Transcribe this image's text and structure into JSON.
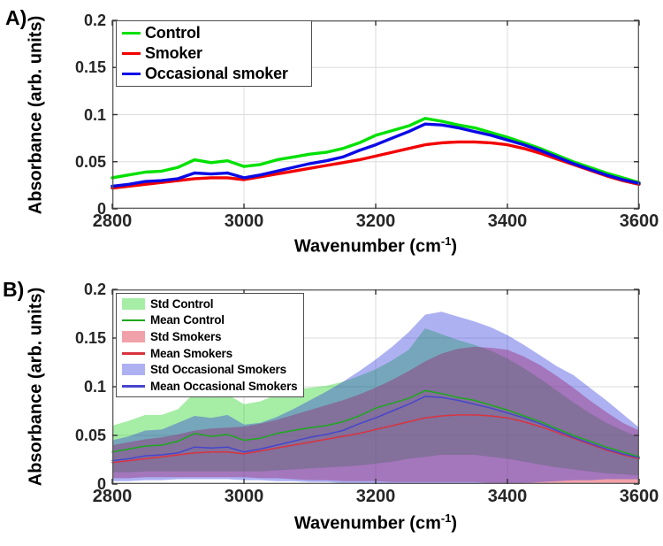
{
  "figure": {
    "panel_a_letter": "A)",
    "panel_b_letter": "B)",
    "ylabel": "Absorbance (arb. units)",
    "xlabel_prefix": "Wavenumber (cm",
    "xlabel_sup": "-1",
    "xlabel_suffix": ")"
  },
  "chart_data": [
    {
      "type": "line",
      "panel": "A",
      "xlabel": "Wavenumber (cm⁻¹)",
      "ylabel": "Absorbance (arb. units)",
      "xlim": [
        2800,
        3600
      ],
      "ylim": [
        0,
        0.2
      ],
      "xticks": [
        2800,
        3000,
        3200,
        3400,
        3600
      ],
      "xtick_labels": [
        "2800",
        "3000",
        "3200",
        "3400",
        "3600"
      ],
      "yticks": [
        0,
        0.05,
        0.1,
        0.15,
        0.2
      ],
      "ytick_labels": [
        "0",
        "0.05",
        "0.1",
        "0.15",
        "0.2"
      ],
      "grid": true,
      "grid_color": "#dcdcdc",
      "legend_position": "top-left",
      "x": [
        2800,
        2825,
        2850,
        2875,
        2900,
        2925,
        2950,
        2975,
        3000,
        3025,
        3050,
        3075,
        3100,
        3125,
        3150,
        3175,
        3200,
        3225,
        3250,
        3275,
        3300,
        3325,
        3350,
        3375,
        3400,
        3425,
        3450,
        3475,
        3500,
        3525,
        3550,
        3575,
        3600
      ],
      "series": [
        {
          "name": "Control",
          "color": "#00e100",
          "values": [
            0.033,
            0.036,
            0.039,
            0.04,
            0.044,
            0.052,
            0.049,
            0.051,
            0.045,
            0.047,
            0.052,
            0.055,
            0.058,
            0.06,
            0.064,
            0.07,
            0.078,
            0.083,
            0.088,
            0.096,
            0.093,
            0.089,
            0.086,
            0.081,
            0.076,
            0.07,
            0.064,
            0.057,
            0.05,
            0.044,
            0.038,
            0.033,
            0.028
          ]
        },
        {
          "name": "Smoker",
          "color": "#f20000",
          "values": [
            0.022,
            0.024,
            0.026,
            0.028,
            0.03,
            0.032,
            0.033,
            0.033,
            0.031,
            0.034,
            0.037,
            0.04,
            0.043,
            0.046,
            0.049,
            0.052,
            0.056,
            0.06,
            0.064,
            0.068,
            0.07,
            0.071,
            0.071,
            0.07,
            0.068,
            0.064,
            0.059,
            0.053,
            0.047,
            0.041,
            0.035,
            0.03,
            0.026
          ]
        },
        {
          "name": "Occasional smoker",
          "color": "#0a0ae6",
          "values": [
            0.024,
            0.026,
            0.029,
            0.03,
            0.032,
            0.038,
            0.037,
            0.038,
            0.033,
            0.036,
            0.04,
            0.044,
            0.048,
            0.051,
            0.055,
            0.062,
            0.068,
            0.075,
            0.082,
            0.09,
            0.089,
            0.086,
            0.082,
            0.078,
            0.073,
            0.068,
            0.062,
            0.055,
            0.048,
            0.042,
            0.036,
            0.031,
            0.027
          ]
        }
      ]
    },
    {
      "type": "area",
      "panel": "B",
      "xlabel": "Wavenumber (cm⁻¹)",
      "ylabel": "Absorbance (arb. units)",
      "xlim": [
        2800,
        3600
      ],
      "ylim": [
        0,
        0.2
      ],
      "xticks": [
        2800,
        3000,
        3200,
        3400,
        3600
      ],
      "xtick_labels": [
        "2800",
        "3000",
        "3200",
        "3400",
        "3600"
      ],
      "yticks": [
        0,
        0.05,
        0.1,
        0.15,
        0.2
      ],
      "ytick_labels": [
        "0",
        "0.05",
        "0.1",
        "0.15",
        "0.2"
      ],
      "grid": true,
      "grid_color": "#dcdcdc",
      "legend_position": "top-left",
      "x": [
        2800,
        2825,
        2850,
        2875,
        2900,
        2925,
        2950,
        2975,
        3000,
        3025,
        3050,
        3075,
        3100,
        3125,
        3150,
        3175,
        3200,
        3225,
        3250,
        3275,
        3300,
        3325,
        3350,
        3375,
        3400,
        3425,
        3450,
        3475,
        3500,
        3525,
        3550,
        3575,
        3600
      ],
      "bands": [
        {
          "name": "Std Control",
          "color": "#00cc00",
          "opacity": 0.35,
          "swatch": "#a6eda6",
          "upper": [
            0.06,
            0.065,
            0.071,
            0.071,
            0.077,
            0.094,
            0.089,
            0.092,
            0.082,
            0.085,
            0.092,
            0.097,
            0.099,
            0.101,
            0.105,
            0.111,
            0.118,
            0.127,
            0.138,
            0.16,
            0.154,
            0.148,
            0.143,
            0.137,
            0.129,
            0.119,
            0.108,
            0.096,
            0.084,
            0.073,
            0.063,
            0.055,
            0.048
          ],
          "lower": [
            0.012,
            0.012,
            0.013,
            0.013,
            0.013,
            0.013,
            0.013,
            0.013,
            0.013,
            0.013,
            0.014,
            0.015,
            0.016,
            0.017,
            0.018,
            0.019,
            0.021,
            0.023,
            0.026,
            0.028,
            0.03,
            0.03,
            0.03,
            0.028,
            0.026,
            0.023,
            0.02,
            0.017,
            0.015,
            0.013,
            0.011,
            0.01,
            0.009
          ]
        },
        {
          "name": "Std Smokers",
          "color": "#dc1428",
          "opacity": 0.4,
          "swatch": "#f1a1a9",
          "upper": [
            0.04,
            0.043,
            0.046,
            0.048,
            0.051,
            0.055,
            0.057,
            0.058,
            0.059,
            0.062,
            0.066,
            0.071,
            0.076,
            0.081,
            0.086,
            0.092,
            0.099,
            0.107,
            0.116,
            0.126,
            0.134,
            0.139,
            0.141,
            0.14,
            0.138,
            0.131,
            0.122,
            0.111,
            0.099,
            0.086,
            0.074,
            0.063,
            0.055
          ],
          "lower": [
            0.006,
            0.006,
            0.007,
            0.007,
            0.007,
            0.007,
            0.007,
            0.007,
            0.007,
            0.006,
            0.006,
            0.005,
            0.004,
            0.004,
            0.003,
            0.003,
            0.003,
            0.002,
            0.002,
            0.002,
            0.002,
            0.002,
            0.002,
            0.001,
            0.001,
            0.001,
            0.001,
            0.001,
            0.001,
            0.001,
            0.001,
            0.0,
            0.0
          ]
        },
        {
          "name": "Std Occasional Smokers",
          "color": "#2832dc",
          "opacity": 0.38,
          "swatch": "#adb1f1",
          "upper": [
            0.045,
            0.049,
            0.055,
            0.056,
            0.063,
            0.07,
            0.068,
            0.071,
            0.061,
            0.063,
            0.069,
            0.077,
            0.086,
            0.095,
            0.105,
            0.116,
            0.128,
            0.141,
            0.156,
            0.174,
            0.177,
            0.172,
            0.167,
            0.161,
            0.153,
            0.143,
            0.132,
            0.121,
            0.112,
            0.099,
            0.086,
            0.072,
            0.058
          ],
          "lower": [
            0.003,
            0.003,
            0.004,
            0.004,
            0.005,
            0.005,
            0.005,
            0.005,
            0.004,
            0.004,
            0.003,
            0.003,
            0.002,
            0.002,
            0.001,
            0.001,
            0.0,
            0.0,
            0.0,
            0.0,
            0.0,
            0.0,
            0.0,
            0.0,
            0.0,
            0.001,
            0.002,
            0.003,
            0.004,
            0.004,
            0.005,
            0.005,
            0.005
          ]
        }
      ],
      "series": [
        {
          "name": "Mean Control",
          "color": "#1ea81e",
          "values": [
            0.033,
            0.036,
            0.039,
            0.04,
            0.044,
            0.052,
            0.049,
            0.051,
            0.045,
            0.047,
            0.052,
            0.055,
            0.058,
            0.06,
            0.064,
            0.07,
            0.078,
            0.083,
            0.088,
            0.096,
            0.093,
            0.089,
            0.086,
            0.081,
            0.076,
            0.07,
            0.064,
            0.057,
            0.05,
            0.044,
            0.038,
            0.033,
            0.028
          ]
        },
        {
          "name": "Mean Smokers",
          "color": "#d83440",
          "values": [
            0.022,
            0.024,
            0.026,
            0.028,
            0.03,
            0.032,
            0.033,
            0.033,
            0.031,
            0.034,
            0.037,
            0.04,
            0.043,
            0.046,
            0.049,
            0.052,
            0.056,
            0.06,
            0.064,
            0.068,
            0.07,
            0.071,
            0.071,
            0.07,
            0.068,
            0.064,
            0.059,
            0.053,
            0.047,
            0.041,
            0.035,
            0.03,
            0.026
          ]
        },
        {
          "name": "Mean Occasional Smokers",
          "color": "#4646cc",
          "values": [
            0.024,
            0.026,
            0.029,
            0.03,
            0.032,
            0.038,
            0.037,
            0.038,
            0.033,
            0.036,
            0.04,
            0.044,
            0.048,
            0.051,
            0.055,
            0.062,
            0.068,
            0.075,
            0.082,
            0.09,
            0.089,
            0.086,
            0.082,
            0.078,
            0.073,
            0.068,
            0.062,
            0.055,
            0.048,
            0.042,
            0.036,
            0.031,
            0.027
          ]
        }
      ]
    }
  ]
}
